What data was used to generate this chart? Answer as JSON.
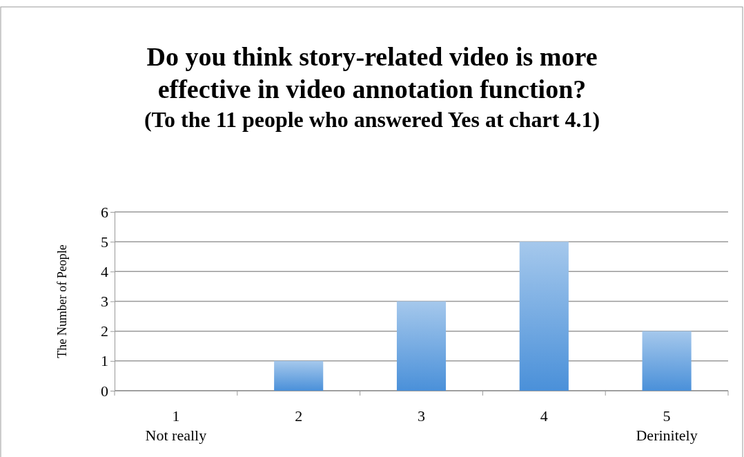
{
  "chart_data": {
    "type": "bar",
    "title": "Do you think story-related video is more\neffective in video annotation function?",
    "subtitle": "(To the 11 people who answered Yes at chart 4.1)",
    "ylabel": "The Number of People",
    "categories": [
      "1\nNot really",
      "2",
      "3",
      "4",
      "5\nDerinitely"
    ],
    "values": [
      0,
      1,
      3,
      5,
      2
    ],
    "color": "#4a90d9",
    "ylim": [
      0,
      6
    ],
    "yticks": [
      0,
      1,
      2,
      3,
      4,
      5,
      6
    ],
    "grid": "y"
  }
}
